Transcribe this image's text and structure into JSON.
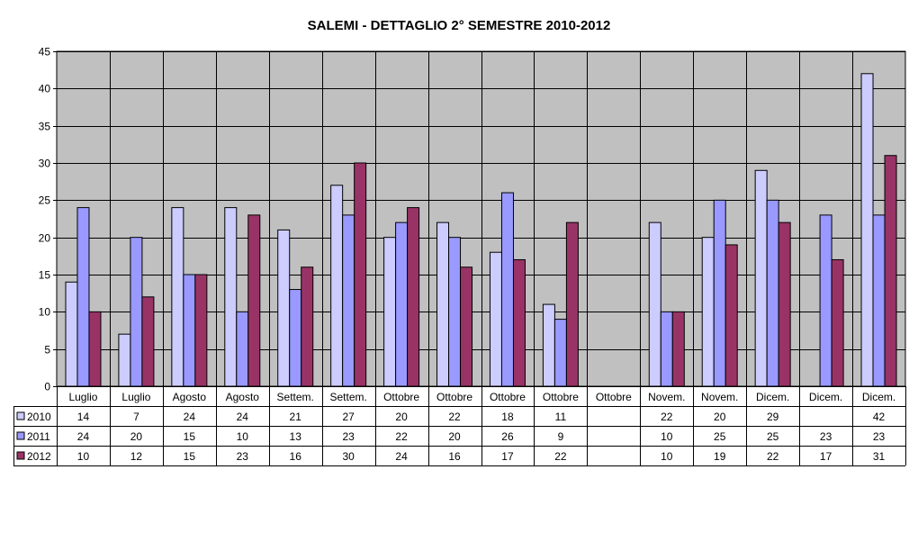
{
  "chart_data": {
    "type": "bar",
    "title": "SALEMI  -  DETTAGLIO 2° SEMESTRE  2010-2012",
    "xlabel": "",
    "ylabel": "",
    "ylim": [
      0,
      45
    ],
    "yticks": [
      0,
      5,
      10,
      15,
      20,
      25,
      30,
      35,
      40,
      45
    ],
    "grid": true,
    "legend": "data-table-left",
    "categories": [
      "Luglio",
      "Luglio",
      "Agosto",
      "Agosto",
      "Settem.",
      "Settem.",
      "Ottobre",
      "Ottobre",
      "Ottobre",
      "Ottobre",
      "Ottobre",
      "Novem.",
      "Novem.",
      "Dicem.",
      "Dicem.",
      "Dicem."
    ],
    "series": [
      {
        "name": "2010",
        "color": "#ccccff",
        "values": [
          14,
          7,
          24,
          24,
          21,
          27,
          20,
          22,
          18,
          11,
          null,
          22,
          20,
          29,
          null,
          42
        ]
      },
      {
        "name": "2011",
        "color": "#9999ff",
        "values": [
          24,
          20,
          15,
          10,
          13,
          23,
          22,
          20,
          26,
          9,
          null,
          10,
          25,
          25,
          23,
          23
        ]
      },
      {
        "name": "2012",
        "color": "#993366",
        "values": [
          10,
          12,
          15,
          23,
          16,
          30,
          24,
          16,
          17,
          22,
          null,
          10,
          19,
          22,
          17,
          31
        ]
      }
    ],
    "plot_background": "#c0c0c0"
  }
}
